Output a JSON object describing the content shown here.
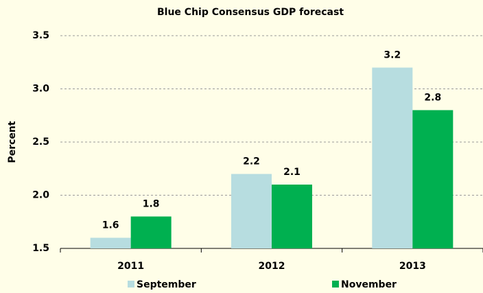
{
  "chart_data": {
    "type": "bar",
    "title": "Blue Chip Consensus GDP forecast",
    "y_label": "Percent",
    "categories": [
      "2011",
      "2012",
      "2013"
    ],
    "series": [
      {
        "name": "September",
        "color": "#b7dde0",
        "values": [
          1.6,
          2.2,
          3.2
        ]
      },
      {
        "name": "November",
        "color": "#00b050",
        "values": [
          1.8,
          2.1,
          2.8
        ]
      }
    ],
    "ylim": [
      1.5,
      3.5
    ],
    "yticks": [
      1.5,
      {
        "value": 2,
        "label": "2.0"
      },
      2.5,
      {
        "value": 3,
        "label": "3.0"
      },
      3.5
    ],
    "grid": true
  }
}
